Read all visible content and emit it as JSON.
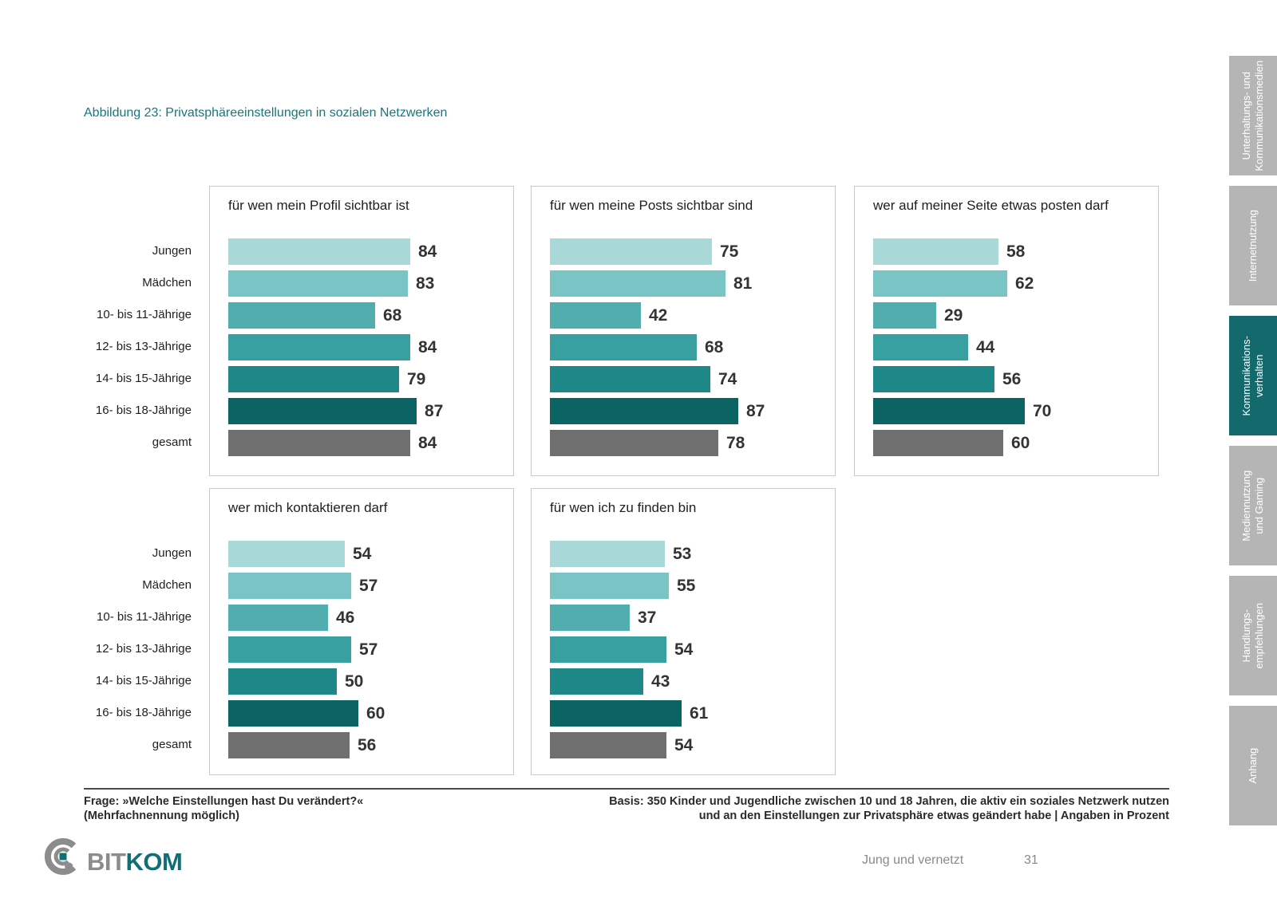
{
  "title": "Abbildung 23: Privatsphäreeinstellungen in sozialen Netzwerken",
  "chart_data": {
    "type": "bar",
    "orientation": "horizontal",
    "unit": "Angaben in Prozent",
    "xlim": [
      0,
      100
    ],
    "categories": [
      "Jungen",
      "Mädchen",
      "10- bis 11-Jährige",
      "12- bis 13-Jährige",
      "14- bis 15-Jährige",
      "16- bis 18-Jährige",
      "gesamt"
    ],
    "bar_colors": [
      "#a9d8d8",
      "#79c4c4",
      "#52aeae",
      "#38a0a0",
      "#1e8787",
      "#0b6363",
      "#6f6f6f"
    ],
    "charts": [
      {
        "title": "für wen mein Profil sichtbar ist",
        "values": [
          84,
          83,
          68,
          84,
          79,
          87,
          84
        ]
      },
      {
        "title": "für wen meine Posts sichtbar sind",
        "values": [
          75,
          81,
          42,
          68,
          74,
          87,
          78
        ]
      },
      {
        "title": "wer auf meiner Seite etwas posten darf",
        "values": [
          58,
          62,
          29,
          44,
          56,
          70,
          60
        ]
      },
      {
        "title": "wer mich kontaktieren darf",
        "values": [
          54,
          57,
          46,
          57,
          50,
          60,
          56
        ]
      },
      {
        "title": "für wen ich zu finden bin",
        "values": [
          53,
          55,
          37,
          54,
          43,
          61,
          54
        ]
      }
    ]
  },
  "sidebar": {
    "active_color": "#14696c",
    "inactive_color": "#b5b5b5",
    "tabs": [
      {
        "label": "Unterhaltungs- und\nKommunikationsmedien",
        "active": false
      },
      {
        "label": "Internetnutzung",
        "active": false
      },
      {
        "label": "Kommunikations-\nverhalten",
        "active": true
      },
      {
        "label": "Mediennutzung\nund Gaming",
        "active": false
      },
      {
        "label": "Handlungs-\nempfehlungen",
        "active": false
      },
      {
        "label": "Anhang",
        "active": false
      }
    ]
  },
  "footer": {
    "question_line1": "Frage: »Welche Einstellungen hast Du verändert?«",
    "question_line2": "(Mehrfachnennung möglich)",
    "basis_line1": "Basis: 350 Kinder und Jugendliche zwischen 10 und 18 Jahren, die aktiv ein soziales Netzwerk nutzen",
    "basis_line2": "und an den Einstellungen zur Privatsphäre etwas geändert habe | Angaben in Prozent",
    "doc_title": "Jung und vernetzt",
    "page_number": "31"
  },
  "logo": {
    "text_gray": "BIT",
    "text_teal": "KOM"
  },
  "colors": {
    "title": "#15787c",
    "value_label": "#333333"
  }
}
